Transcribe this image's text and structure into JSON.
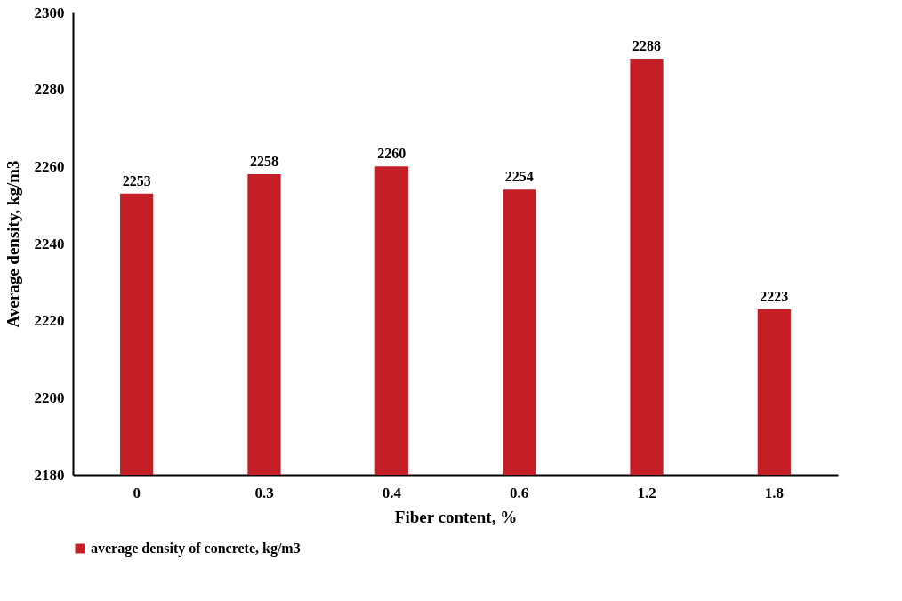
{
  "chart_data": {
    "type": "bar",
    "xlabel": "Fiber content, %",
    "ylabel": "Average density, kg/m3",
    "categories": [
      "0",
      "0.3",
      "0.4",
      "0.6",
      "1.2",
      "1.8"
    ],
    "series": [
      {
        "name": "average density of concrete, kg/m3",
        "color": "#c41f26",
        "values": [
          2253,
          2258,
          2260,
          2254,
          2288,
          2223
        ]
      }
    ],
    "ylim": [
      2180,
      2300
    ],
    "yticks": [
      2180,
      2200,
      2220,
      2240,
      2260,
      2280,
      2300
    ],
    "grid": false,
    "legend": "bottom",
    "data_labels": true
  }
}
